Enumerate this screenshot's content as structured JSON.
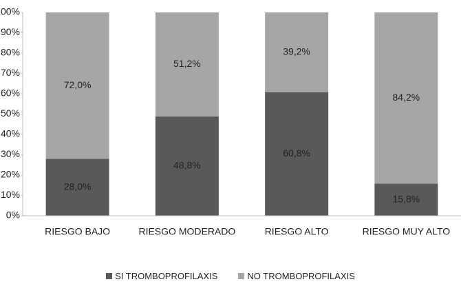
{
  "chart_data": {
    "type": "stacked_bar",
    "categories": [
      "RIESGO BAJO",
      "RIESGO MODERADO",
      "RIESGO ALTO",
      "RIESGO MUY ALTO"
    ],
    "series": [
      {
        "name": "SI TROMBOPROFILAXIS",
        "color": "#595959",
        "values": [
          28.0,
          48.8,
          60.8,
          15.8
        ],
        "value_labels": [
          "28,0%",
          "48,8%",
          "60,8%",
          "15,8%"
        ]
      },
      {
        "name": "NO TROMBOPROFILAXIS",
        "color": "#a6a6a6",
        "values": [
          72.0,
          51.2,
          39.2,
          84.2
        ],
        "value_labels": [
          "72,0%",
          "51,2%",
          "39,2%",
          "84,2%"
        ]
      }
    ],
    "ylim": [
      0,
      100
    ],
    "yticks": [
      {
        "value": 0,
        "label": "0%"
      },
      {
        "value": 10,
        "label": "10%"
      },
      {
        "value": 20,
        "label": "20%"
      },
      {
        "value": 30,
        "label": "30%"
      },
      {
        "value": 40,
        "label": "40%"
      },
      {
        "value": 50,
        "label": "50%"
      },
      {
        "value": 60,
        "label": "60%"
      },
      {
        "value": 70,
        "label": "70%"
      },
      {
        "value": 80,
        "label": "80%"
      },
      {
        "value": 90,
        "label": "90%"
      },
      {
        "value": 100,
        "label": "100%"
      }
    ],
    "grid": false,
    "legend": "bottom"
  }
}
